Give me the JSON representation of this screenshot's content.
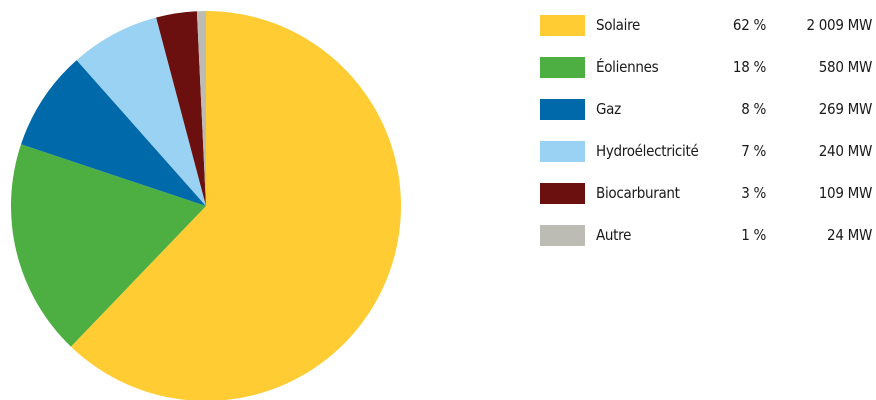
{
  "chart_data": {
    "type": "pie",
    "slices": [
      {
        "label": "Solaire",
        "percent_label": "62 %",
        "value_label": "2 009 MW",
        "value": 2009,
        "color": "#FFCC33"
      },
      {
        "label": "Éoliennes",
        "percent_label": "18 %",
        "value_label": "580 MW",
        "value": 580,
        "color": "#4DAE41"
      },
      {
        "label": "Gaz",
        "percent_label": "8 %",
        "value_label": "269 MW",
        "value": 269,
        "color": "#0069AA"
      },
      {
        "label": "Hydroélectricité",
        "percent_label": "7 %",
        "value_label": "240 MW",
        "value": 240,
        "color": "#99D2F2"
      },
      {
        "label": "Biocarburant",
        "percent_label": "3 %",
        "value_label": "109 MW",
        "value": 109,
        "color": "#6B0F0F"
      },
      {
        "label": "Autre",
        "percent_label": "1 %",
        "value_label": "24 MW",
        "value": 24,
        "color": "#BDBCB4"
      }
    ],
    "start_angle": "top",
    "direction": "clockwise",
    "legend_position": "right"
  }
}
